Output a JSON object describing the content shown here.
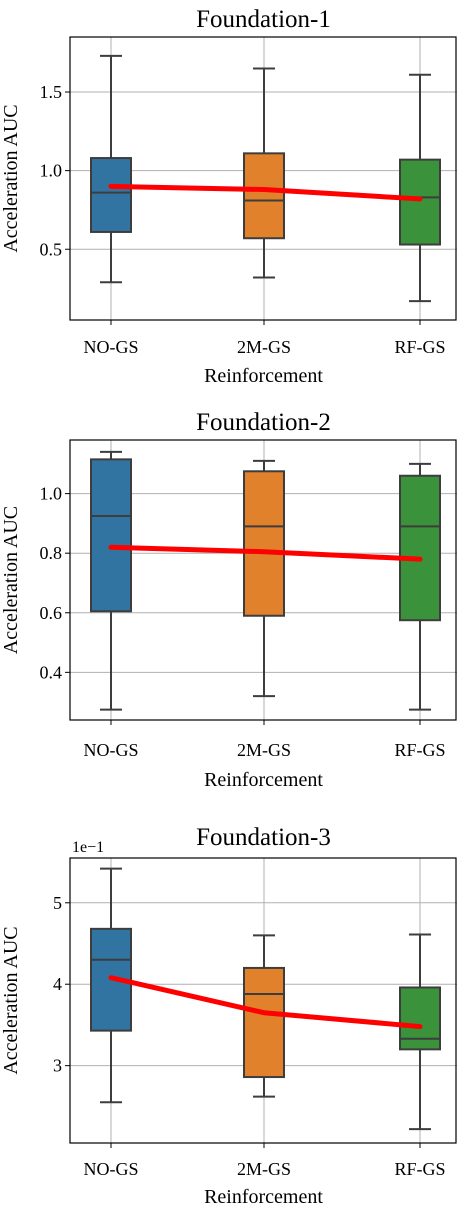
{
  "chart_data": [
    {
      "type": "box",
      "title": "Foundation-1",
      "xlabel": "Reinforcement",
      "ylabel": "Acceleration AUC",
      "categories": [
        "NO-GS",
        "2M-GS",
        "RF-GS"
      ],
      "colors": [
        "#3274a1",
        "#e1812c",
        "#3a923a"
      ],
      "mean_line_color": "#ff0000",
      "grid": true,
      "ylim": [
        0.05,
        1.85
      ],
      "yticks": [
        0.5,
        1.0,
        1.5
      ],
      "ytick_labels": [
        "0.5",
        "1.0",
        "1.5"
      ],
      "offset_label": "",
      "boxes": [
        {
          "whisker_low": 0.29,
          "q1": 0.61,
          "median": 0.86,
          "q3": 1.08,
          "whisker_high": 1.73
        },
        {
          "whisker_low": 0.32,
          "q1": 0.57,
          "median": 0.81,
          "q3": 1.11,
          "whisker_high": 1.65
        },
        {
          "whisker_low": 0.17,
          "q1": 0.53,
          "median": 0.83,
          "q3": 1.07,
          "whisker_high": 1.61
        }
      ],
      "means": [
        0.9,
        0.88,
        0.82
      ]
    },
    {
      "type": "box",
      "title": "Foundation-2",
      "xlabel": "Reinforcement",
      "ylabel": "Acceleration AUC",
      "categories": [
        "NO-GS",
        "2M-GS",
        "RF-GS"
      ],
      "colors": [
        "#3274a1",
        "#e1812c",
        "#3a923a"
      ],
      "mean_line_color": "#ff0000",
      "grid": true,
      "ylim": [
        0.24,
        1.18
      ],
      "yticks": [
        0.4,
        0.6,
        0.8,
        1.0
      ],
      "ytick_labels": [
        "0.4",
        "0.6",
        "0.8",
        "1.0"
      ],
      "offset_label": "",
      "boxes": [
        {
          "whisker_low": 0.275,
          "q1": 0.605,
          "median": 0.925,
          "q3": 1.115,
          "whisker_high": 1.14
        },
        {
          "whisker_low": 0.32,
          "q1": 0.59,
          "median": 0.89,
          "q3": 1.075,
          "whisker_high": 1.11
        },
        {
          "whisker_low": 0.275,
          "q1": 0.575,
          "median": 0.89,
          "q3": 1.06,
          "whisker_high": 1.1
        }
      ],
      "means": [
        0.82,
        0.805,
        0.78
      ]
    },
    {
      "type": "box",
      "title": "Foundation-3",
      "xlabel": "Reinforcement",
      "ylabel": "Acceleration AUC",
      "categories": [
        "NO-GS",
        "2M-GS",
        "RF-GS"
      ],
      "colors": [
        "#3274a1",
        "#e1812c",
        "#3a923a"
      ],
      "mean_line_color": "#ff0000",
      "grid": true,
      "ylim": [
        2.05,
        5.55
      ],
      "yticks": [
        3,
        4,
        5
      ],
      "ytick_labels": [
        "3",
        "4",
        "5"
      ],
      "offset_label": "1e−1",
      "boxes": [
        {
          "whisker_low": 2.55,
          "q1": 3.43,
          "median": 4.3,
          "q3": 4.68,
          "whisker_high": 5.42
        },
        {
          "whisker_low": 2.62,
          "q1": 2.86,
          "median": 3.88,
          "q3": 4.2,
          "whisker_high": 4.6
        },
        {
          "whisker_low": 2.22,
          "q1": 3.2,
          "median": 3.33,
          "q3": 3.96,
          "whisker_high": 4.61
        }
      ],
      "means": [
        4.08,
        3.65,
        3.48
      ]
    }
  ]
}
